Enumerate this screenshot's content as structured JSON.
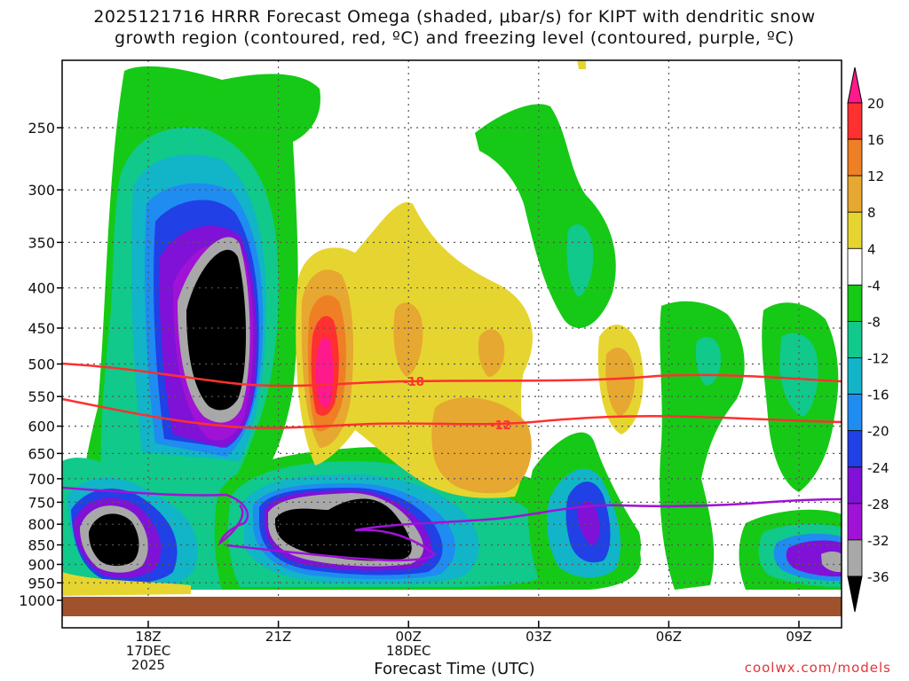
{
  "chart_data": {
    "type": "contour",
    "title_line1": "2025121716 HRRR Forecast Omega (shaded, μbar/s) for KIPT with dendritic snow",
    "title_line2": "growth region (contoured, red, ºC) and freezing level (contoured, purple, ºC)",
    "xlabel": "Forecast Time (UTC)",
    "ylabel": "",
    "y_ticks": [
      "250",
      "300",
      "350",
      "400",
      "450",
      "500",
      "550",
      "600",
      "650",
      "700",
      "750",
      "800",
      "850",
      "900",
      "950",
      "1000"
    ],
    "x_ticks": [
      {
        "label": "18Z",
        "sub1": "17DEC",
        "sub2": "2025"
      },
      {
        "label": "21Z",
        "sub1": "",
        "sub2": ""
      },
      {
        "label": "00Z",
        "sub1": "18DEC",
        "sub2": ""
      },
      {
        "label": "03Z",
        "sub1": "",
        "sub2": ""
      },
      {
        "label": "06Z",
        "sub1": "",
        "sub2": ""
      },
      {
        "label": "09Z",
        "sub1": "",
        "sub2": ""
      }
    ],
    "colorbar": {
      "labels": [
        "20",
        "16",
        "12",
        "8",
        "4",
        "-4",
        "-8",
        "-12",
        "-16",
        "-20",
        "-24",
        "-28",
        "-32",
        "-36"
      ],
      "colors": [
        "#ff1a8c",
        "#ff3030",
        "#ef7f24",
        "#e6a830",
        "#e6d530",
        "#ffffff",
        "#16c916",
        "#10c98a",
        "#12b4c8",
        "#1e8cf0",
        "#2140e6",
        "#7f12d6",
        "#a012d6",
        "#a8a8a8"
      ]
    },
    "contour_labels": [
      {
        "text": "-18",
        "color": "#ff3030"
      },
      {
        "text": "-12",
        "color": "#ff3030"
      }
    ],
    "grid": true
  },
  "credit": "coolwx.com/models"
}
